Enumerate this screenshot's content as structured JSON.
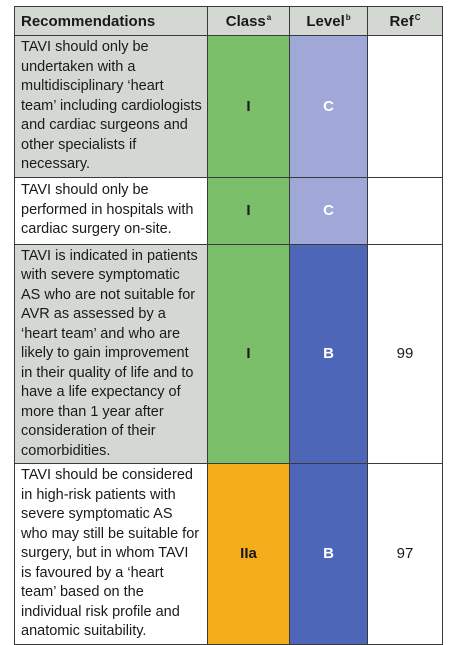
{
  "header": {
    "recommendations": "Recommendations",
    "class": "Class",
    "class_sup": "a",
    "level": "Level",
    "level_sup": "b",
    "ref": "Ref",
    "ref_sup": "C"
  },
  "colors": {
    "class_I": "#7bbf6a",
    "class_IIa": "#f5ad1b",
    "level_C": "#9fa8d6",
    "level_B": "#4e66b8",
    "header_bg": "#d4d8d3"
  },
  "rows": [
    {
      "text": "TAVI should only be undertaken with a multidisciplinary ‘heart team’ including cardiologists and cardiac surgeons and other specialists if necessary.",
      "class": "I",
      "level": "C",
      "ref": ""
    },
    {
      "text": "TAVI should only be performed in hospitals with cardiac surgery on-site.",
      "class": "I",
      "level": "C",
      "ref": ""
    },
    {
      "text": "TAVI is indicated in patients with severe symptomatic AS who are not suitable for AVR as assessed by a ‘heart team’ and who are likely to gain improvement in their quality of life and to have a life expectancy of more than 1 year after consideration of their comorbidities.",
      "class": "I",
      "level": "B",
      "ref": "99"
    },
    {
      "text": "TAVI should be considered in high-risk patients with severe symptomatic AS who may still be suitable for surgery, but in whom TAVI is favoured by a ‘heart team’ based on the individual risk profile and anatomic suitability.",
      "class": "IIa",
      "level": "B",
      "ref": "97"
    }
  ]
}
